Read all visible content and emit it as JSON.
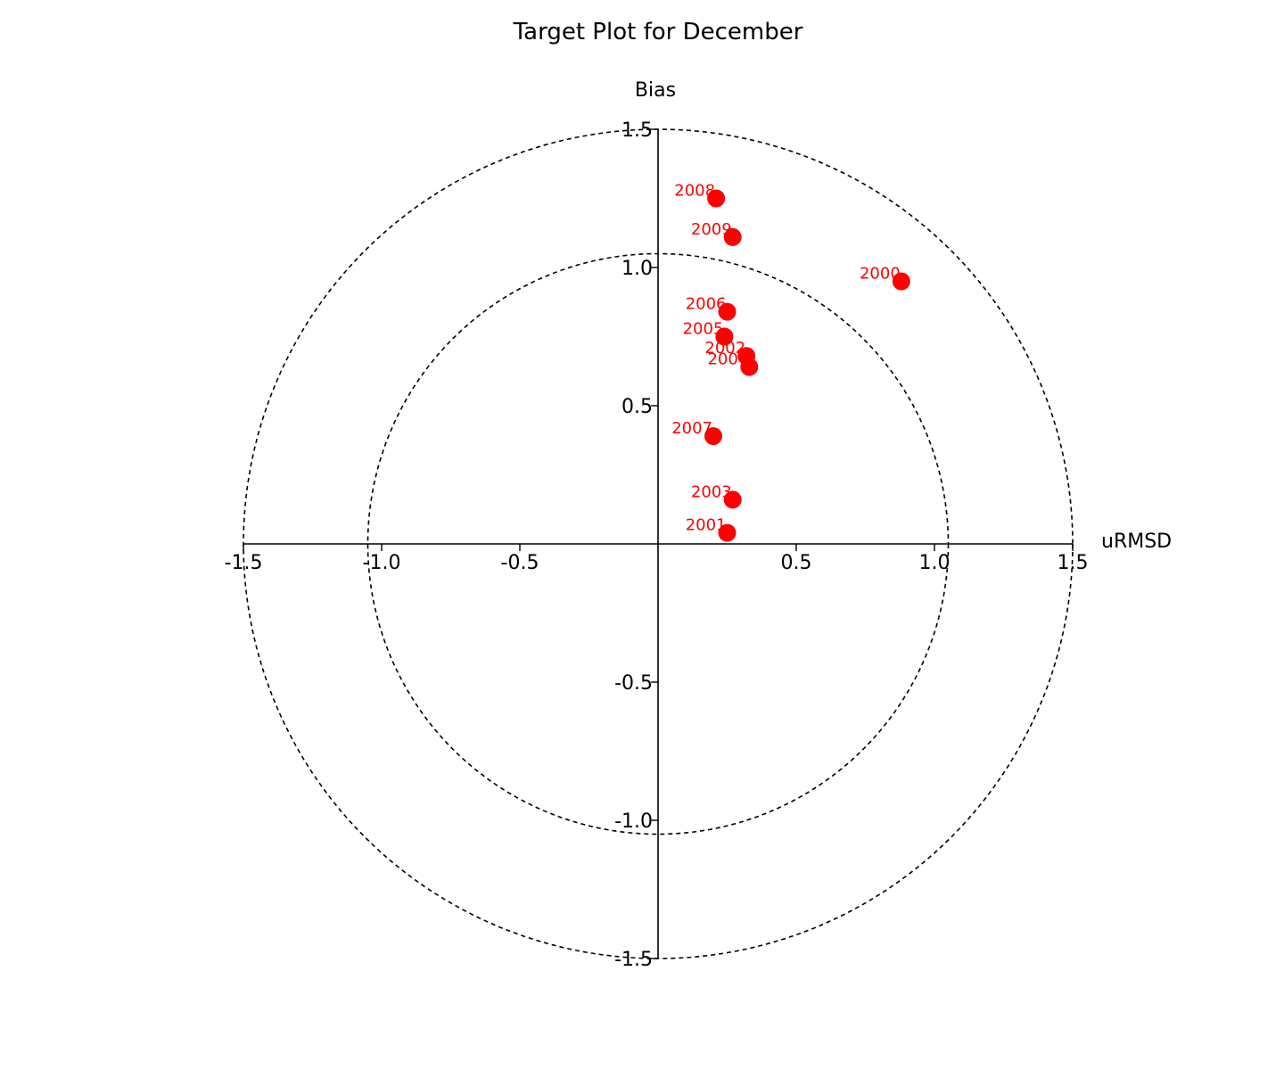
{
  "chart_data": {
    "type": "scatter",
    "title": "Target Plot for December",
    "xlabel": "uRMSD",
    "ylabel": "Bias",
    "xlim": [
      -1.5,
      1.5
    ],
    "ylim": [
      -1.5,
      1.5
    ],
    "x_ticks": [
      "-1.5",
      "-1.0",
      "-0.5",
      "0.5",
      "1.0",
      "1.5"
    ],
    "y_ticks": [
      "-1.5",
      "-1.0",
      "-0.5",
      "0.5",
      "1.0",
      "1.5"
    ],
    "circles": [
      1.05,
      1.5
    ],
    "grid": false,
    "point_color": "#ff0000",
    "points": [
      {
        "label": "2000",
        "x": 0.88,
        "y": 0.95
      },
      {
        "label": "2001",
        "x": 0.25,
        "y": 0.04
      },
      {
        "label": "2002",
        "x": 0.32,
        "y": 0.68
      },
      {
        "label": "2004",
        "x": 0.33,
        "y": 0.64
      },
      {
        "label": "2003",
        "x": 0.27,
        "y": 0.16
      },
      {
        "label": "2005",
        "x": 0.24,
        "y": 0.75
      },
      {
        "label": "2006",
        "x": 0.25,
        "y": 0.84
      },
      {
        "label": "2007",
        "x": 0.2,
        "y": 0.39
      },
      {
        "label": "2008",
        "x": 0.21,
        "y": 1.25
      },
      {
        "label": "2009",
        "x": 0.27,
        "y": 1.11
      }
    ]
  }
}
